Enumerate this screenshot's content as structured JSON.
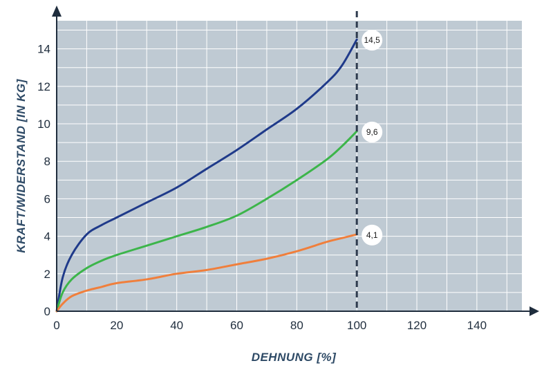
{
  "chart_data": {
    "type": "line",
    "xlabel": "DEHNUNG [%]",
    "ylabel": "KRAFT/WIDERSTAND [IN KG]",
    "xlim": [
      0,
      155
    ],
    "ylim": [
      0,
      15.5
    ],
    "x_ticks": [
      "0",
      "20",
      "40",
      "60",
      "80",
      "100",
      "120",
      "140"
    ],
    "y_ticks": [
      "0",
      "2",
      "4",
      "6",
      "8",
      "10",
      "12",
      "14"
    ],
    "x_tick_values": [
      0,
      20,
      40,
      60,
      80,
      100,
      120,
      140
    ],
    "y_tick_values": [
      0,
      2,
      4,
      6,
      8,
      10,
      12,
      14
    ],
    "grid": true,
    "vline": {
      "x": 100,
      "style": "dashed"
    },
    "series": [
      {
        "color": "#1f3a8a",
        "x": [
          0,
          2,
          5,
          10,
          15,
          20,
          30,
          40,
          50,
          60,
          70,
          80,
          90,
          95,
          100
        ],
        "y": [
          0,
          1.8,
          3.0,
          4.1,
          4.6,
          5.0,
          5.8,
          6.6,
          7.6,
          8.6,
          9.7,
          10.8,
          12.2,
          13.1,
          14.5
        ],
        "end_label": "14,5"
      },
      {
        "color": "#3cb54a",
        "x": [
          0,
          2,
          5,
          10,
          15,
          20,
          30,
          40,
          50,
          60,
          70,
          80,
          90,
          95,
          100
        ],
        "y": [
          0,
          1.0,
          1.7,
          2.3,
          2.7,
          3.0,
          3.5,
          4.0,
          4.5,
          5.1,
          6.0,
          7.0,
          8.1,
          8.8,
          9.6
        ],
        "end_label": "9,6"
      },
      {
        "color": "#f07f3c",
        "x": [
          0,
          2,
          5,
          10,
          15,
          20,
          30,
          40,
          50,
          60,
          70,
          80,
          90,
          95,
          100
        ],
        "y": [
          0,
          0.4,
          0.8,
          1.1,
          1.3,
          1.5,
          1.7,
          2.0,
          2.2,
          2.5,
          2.8,
          3.2,
          3.7,
          3.9,
          4.1
        ],
        "end_label": "4,1"
      }
    ]
  },
  "colors": {
    "plot_background": "#bfcad3",
    "grid": "#ffffff",
    "axis": "#1f2d3d",
    "vline": "#2e3b4e",
    "axis_title": "#2e4a66"
  }
}
